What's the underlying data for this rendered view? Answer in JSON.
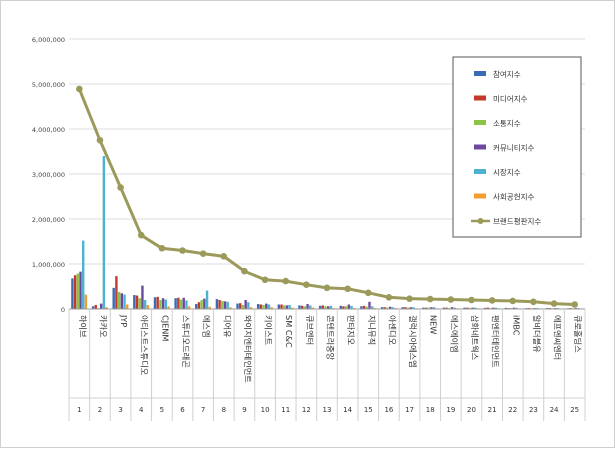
{
  "chart_data": {
    "type": "bar",
    "title": "",
    "xlabel": "",
    "ylabel": "",
    "ylim": [
      0,
      6000000
    ],
    "y_ticks": [
      "0",
      "1,000,000",
      "2,000,000",
      "3,000,000",
      "4,000,000",
      "5,000,000",
      "6,000,000"
    ],
    "grid": true,
    "legend_position": "right",
    "categories": [
      "하이브",
      "카카오",
      "JYP",
      "아티스트스튜디오",
      "CJENM",
      "스튜디오드래곤",
      "에스엠",
      "디어유",
      "와이지엔터테인먼트",
      "키이스트",
      "SM C&C",
      "큐브엔터",
      "콘텐트리중앙",
      "판타지오",
      "지니뮤직",
      "아센디오",
      "갤럭시아에스엠",
      "NEW",
      "에스에이엠",
      "삼화네트웍스",
      "팬엔터테인먼트",
      "iMBC",
      "알비더블유",
      "에프엔씨엔터",
      "큐로홀딩스"
    ],
    "numbers": [
      "1",
      "2",
      "3",
      "4",
      "5",
      "6",
      "7",
      "8",
      "9",
      "10",
      "11",
      "12",
      "13",
      "14",
      "15",
      "16",
      "17",
      "18",
      "19",
      "20",
      "21",
      "22",
      "23",
      "24",
      "25"
    ],
    "series": [
      {
        "name": "참여지수",
        "kind": "bar",
        "color": "#3a6bb3",
        "values": [
          680000,
          60000,
          470000,
          310000,
          260000,
          240000,
          110000,
          220000,
          120000,
          110000,
          100000,
          80000,
          70000,
          70000,
          60000,
          40000,
          40000,
          30000,
          30000,
          30000,
          25000,
          25000,
          20000,
          20000,
          15000
        ]
      },
      {
        "name": "미디어지수",
        "kind": "bar",
        "color": "#c0392b",
        "values": [
          750000,
          90000,
          730000,
          300000,
          270000,
          250000,
          150000,
          200000,
          130000,
          100000,
          100000,
          70000,
          80000,
          60000,
          70000,
          40000,
          40000,
          30000,
          30000,
          30000,
          30000,
          20000,
          20000,
          20000,
          20000
        ]
      },
      {
        "name": "소통지수",
        "kind": "bar",
        "color": "#8bc34a",
        "values": [
          790000,
          20000,
          380000,
          240000,
          200000,
          210000,
          200000,
          180000,
          90000,
          90000,
          80000,
          60000,
          60000,
          60000,
          50000,
          30000,
          30000,
          30000,
          20000,
          25000,
          20000,
          20000,
          15000,
          15000,
          15000
        ]
      },
      {
        "name": "커뮤니티지수",
        "kind": "bar",
        "color": "#6a4a9c",
        "values": [
          830000,
          120000,
          350000,
          520000,
          240000,
          250000,
          230000,
          170000,
          200000,
          120000,
          80000,
          110000,
          60000,
          100000,
          160000,
          50000,
          40000,
          40000,
          40000,
          30000,
          30000,
          30000,
          20000,
          20000,
          20000
        ]
      },
      {
        "name": "시장지수",
        "kind": "bar",
        "color": "#4bb3d1",
        "values": [
          1520000,
          3400000,
          320000,
          200000,
          210000,
          190000,
          410000,
          160000,
          150000,
          100000,
          90000,
          80000,
          70000,
          70000,
          60000,
          40000,
          40000,
          40000,
          30000,
          30000,
          30000,
          25000,
          20000,
          20000,
          20000
        ]
      },
      {
        "name": "사회공헌지수",
        "kind": "bar",
        "color": "#f39c34",
        "values": [
          320000,
          40000,
          100000,
          90000,
          60000,
          60000,
          50000,
          40000,
          40000,
          40000,
          30000,
          30000,
          20000,
          20000,
          20000,
          20000,
          15000,
          15000,
          15000,
          15000,
          15000,
          10000,
          10000,
          10000,
          10000
        ]
      },
      {
        "name": "브랜드평판지수",
        "kind": "line",
        "color": "#9c9a5a",
        "values": [
          4890000,
          3750000,
          2700000,
          1640000,
          1350000,
          1300000,
          1230000,
          1170000,
          840000,
          650000,
          620000,
          540000,
          470000,
          450000,
          360000,
          260000,
          230000,
          220000,
          210000,
          200000,
          190000,
          180000,
          160000,
          120000,
          100000
        ]
      }
    ]
  }
}
